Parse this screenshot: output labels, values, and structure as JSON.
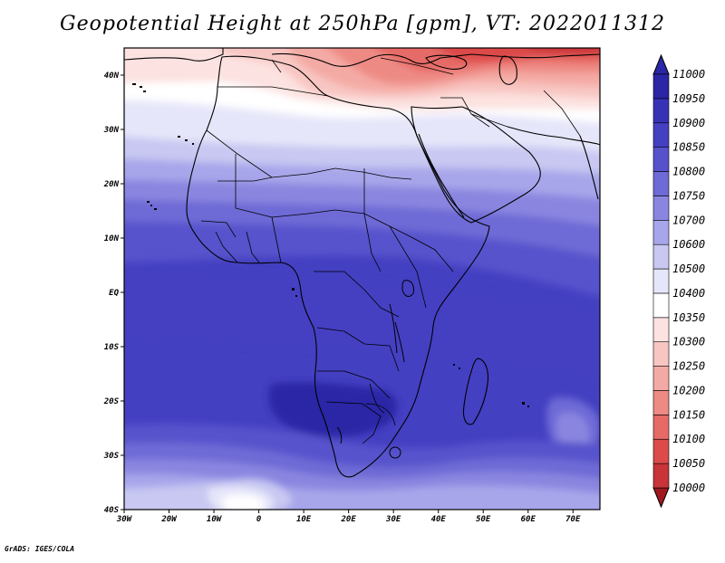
{
  "title": "Geopotential Height at 250hPa [gpm], VT: 2022011312",
  "footer": "GrADS: IGES/COLA",
  "map": {
    "projection": "latlon",
    "lon_range": [
      -30,
      76
    ],
    "lat_range": [
      -40,
      45
    ],
    "field": "geopotential height 250hPa",
    "lon_ticks": [
      "30W",
      "20W",
      "10W",
      "0",
      "10E",
      "20E",
      "30E",
      "40E",
      "50E",
      "60E",
      "70E"
    ],
    "lat_ticks": [
      "40S",
      "30S",
      "20S",
      "10S",
      "EQ",
      "10N",
      "20N",
      "30N",
      "40N"
    ]
  },
  "colorbar": {
    "levels": [
      "10000",
      "10050",
      "10100",
      "10150",
      "10200",
      "10250",
      "10300",
      "10350",
      "10400",
      "10500",
      "10600",
      "10700",
      "10750",
      "10800",
      "10850",
      "10900",
      "10950",
      "11000"
    ],
    "colors": [
      "#b0202a",
      "#c83438",
      "#dc4a4a",
      "#e66a66",
      "#ee8a84",
      "#f4aaa4",
      "#f8c6c2",
      "#fce2e0",
      "#ffffff",
      "#e6e6fa",
      "#c8c8f2",
      "#a8a6ea",
      "#8a86e0",
      "#6e6ad6",
      "#5652cc",
      "#4440c2",
      "#3632b6",
      "#2a26a6"
    ],
    "triangle_low": "#a01820",
    "triangle_high": "#2a26a6"
  }
}
